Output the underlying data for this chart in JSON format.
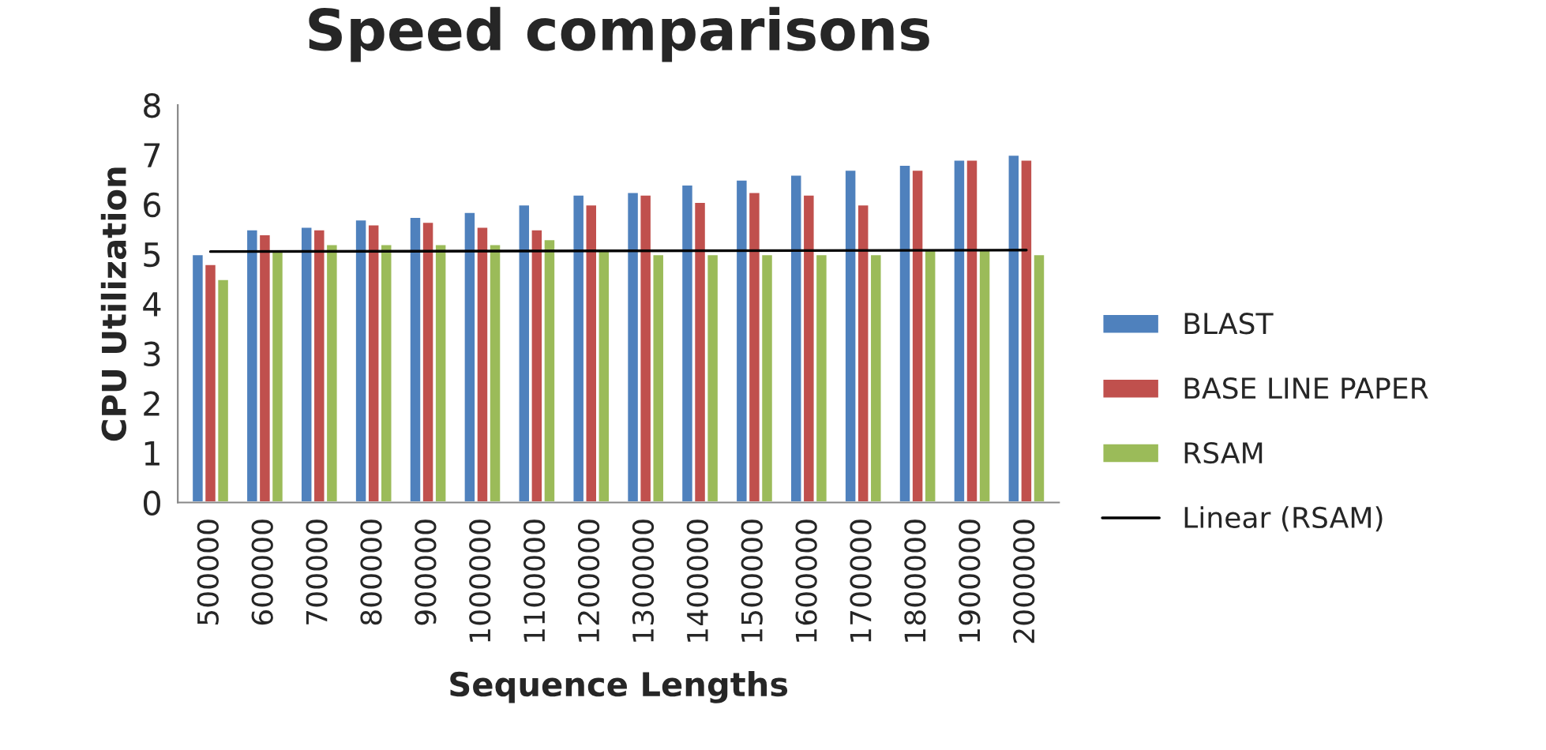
{
  "chart_data": {
    "type": "bar",
    "title": "Speed comparisons",
    "xlabel": "Sequence Lengths",
    "ylabel": "CPU Utilization",
    "categories": [
      "500000",
      "600000",
      "700000",
      "800000",
      "900000",
      "1000000",
      "1100000",
      "1200000",
      "1300000",
      "1400000",
      "1500000",
      "1600000",
      "1700000",
      "1800000",
      "1900000",
      "2000000"
    ],
    "series": [
      {
        "name": "BLAST",
        "color": "#4f81bd",
        "values": [
          5.0,
          5.5,
          5.55,
          5.7,
          5.75,
          5.85,
          6.0,
          6.2,
          6.25,
          6.4,
          6.5,
          6.6,
          6.7,
          6.8,
          6.9,
          7.0
        ]
      },
      {
        "name": "BASE LINE PAPER",
        "color": "#c0504d",
        "values": [
          4.8,
          5.4,
          5.5,
          5.6,
          5.65,
          5.55,
          5.5,
          6.0,
          6.2,
          6.05,
          6.25,
          6.2,
          6.0,
          6.7,
          6.9,
          6.9
        ]
      },
      {
        "name": "RSAM",
        "color": "#9bbb59",
        "values": [
          4.5,
          5.1,
          5.2,
          5.2,
          5.2,
          5.2,
          5.3,
          5.1,
          5.0,
          5.0,
          5.0,
          5.0,
          5.0,
          5.1,
          5.1,
          5.0
        ]
      },
      {
        "name": "Linear (RSAM)",
        "type": "line",
        "color": "#000000",
        "x": [
          "500000",
          "2000000"
        ],
        "values": [
          5.05,
          5.08
        ]
      }
    ],
    "ylim": [
      0,
      8
    ],
    "yticks": [
      0,
      1,
      2,
      3,
      4,
      5,
      6,
      7,
      8
    ],
    "grid": false,
    "legend": "right"
  }
}
